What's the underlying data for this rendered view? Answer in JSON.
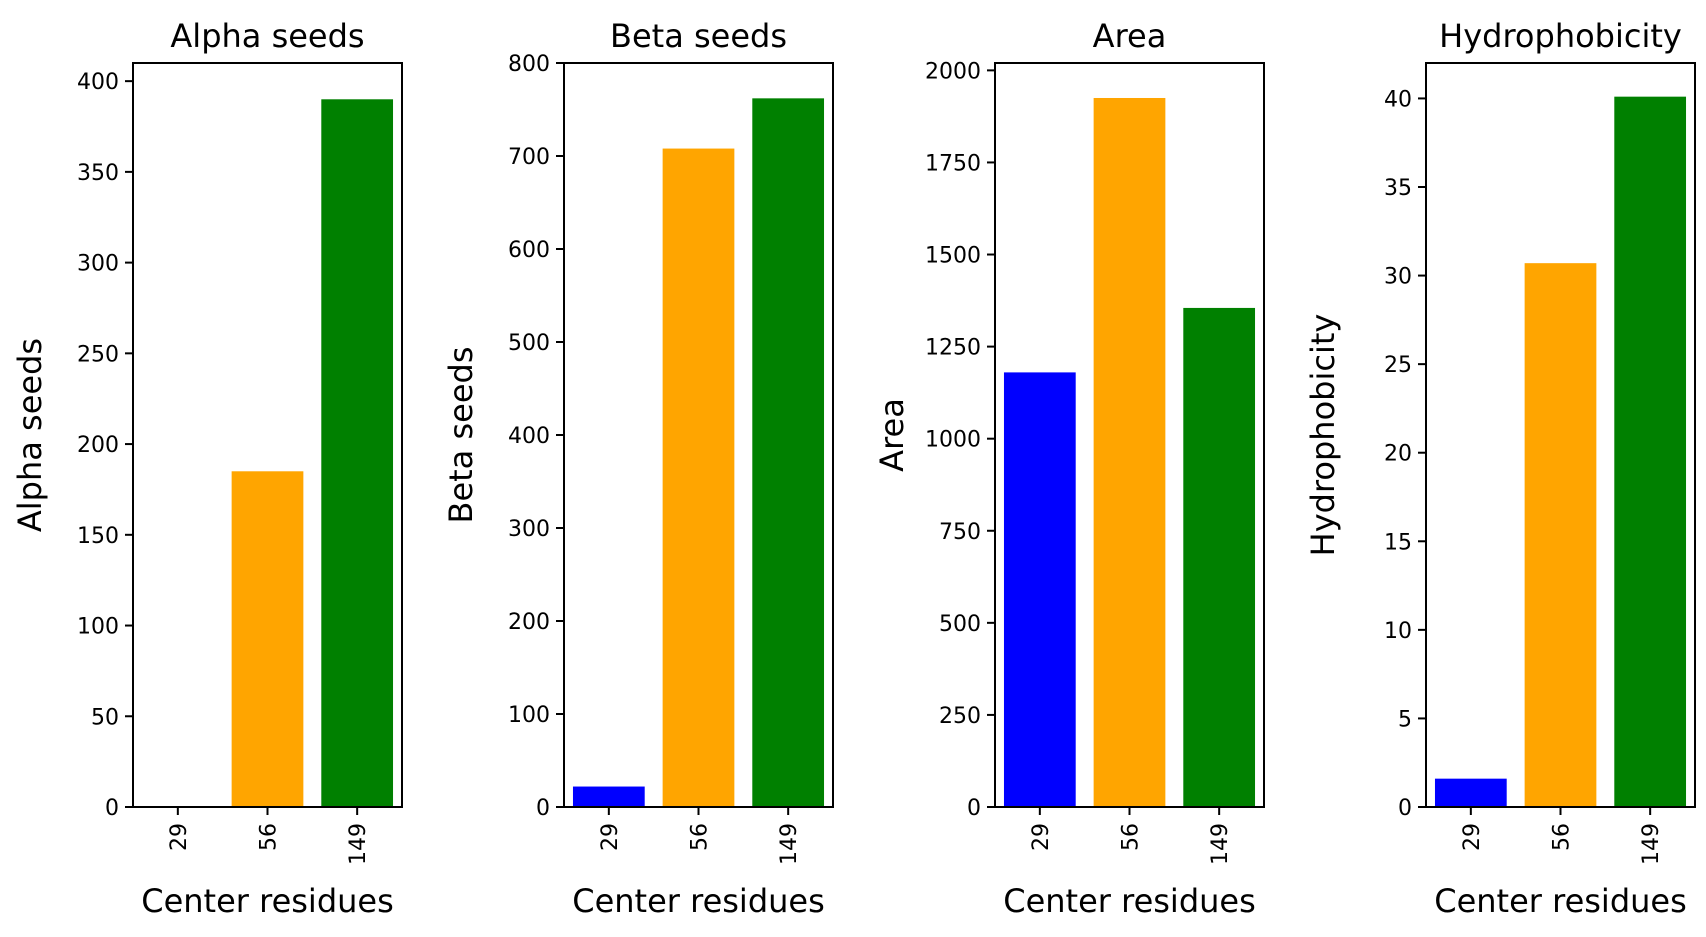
{
  "chart_data": [
    {
      "type": "bar",
      "title": "Alpha seeds",
      "xlabel": "Center residues",
      "ylabel": "Alpha seeds",
      "categories": [
        "29",
        "56",
        "149"
      ],
      "values": [
        0,
        185,
        390
      ],
      "colors": [
        "#0000ff",
        "#ffa500",
        "#008000"
      ],
      "ylim": [
        0,
        410
      ],
      "yticks": [
        0,
        50,
        100,
        150,
        200,
        250,
        300,
        350,
        400
      ]
    },
    {
      "type": "bar",
      "title": "Beta seeds",
      "xlabel": "Center residues",
      "ylabel": "Beta seeds",
      "categories": [
        "29",
        "56",
        "149"
      ],
      "values": [
        22,
        708,
        762
      ],
      "colors": [
        "#0000ff",
        "#ffa500",
        "#008000"
      ],
      "ylim": [
        0,
        800
      ],
      "yticks": [
        0,
        100,
        200,
        300,
        400,
        500,
        600,
        700,
        800
      ]
    },
    {
      "type": "bar",
      "title": "Area",
      "xlabel": "Center residues",
      "ylabel": "Area",
      "categories": [
        "29",
        "56",
        "149"
      ],
      "values": [
        1180,
        1925,
        1355
      ],
      "colors": [
        "#0000ff",
        "#ffa500",
        "#008000"
      ],
      "ylim": [
        0,
        2020
      ],
      "yticks": [
        0,
        250,
        500,
        750,
        1000,
        1250,
        1500,
        1750,
        2000
      ]
    },
    {
      "type": "bar",
      "title": "Hydrophobicity",
      "xlabel": "Center residues",
      "ylabel": "Hydrophobicity",
      "categories": [
        "29",
        "56",
        "149"
      ],
      "values": [
        1.6,
        30.7,
        40.1
      ],
      "colors": [
        "#0000ff",
        "#ffa500",
        "#008000"
      ],
      "ylim": [
        0,
        42
      ],
      "yticks": [
        0,
        5,
        10,
        15,
        20,
        25,
        30,
        35,
        40
      ]
    }
  ]
}
